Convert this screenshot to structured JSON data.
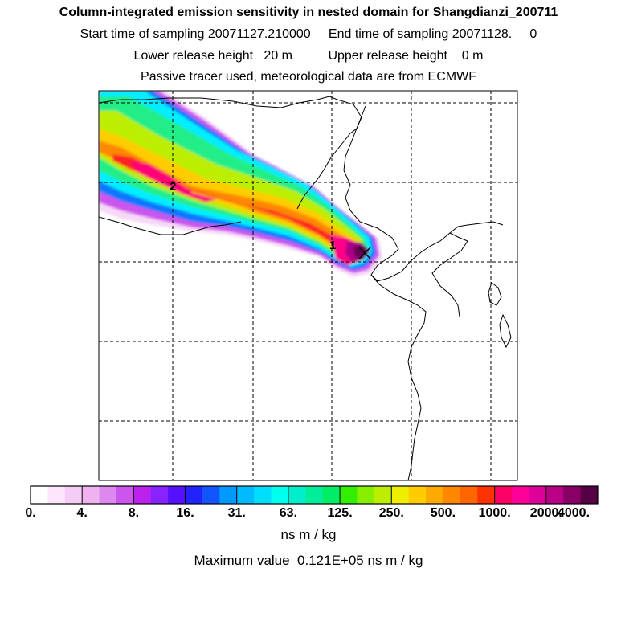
{
  "header": {
    "title": "Column-integrated emission sensitivity in nested domain for Shangdianzi_200711",
    "sampling_line": "Start time of sampling 20071127.210000     End time of sampling 20071128.     0",
    "release_line": "Lower release height   20 m          Upper release height    0 m",
    "tracer_line": "Passive tracer used, meteorological data are from ECMWF"
  },
  "map": {
    "markers": [
      {
        "label": "1"
      },
      {
        "label": "2"
      }
    ],
    "receptor_symbol": "x-marker-icon"
  },
  "colorbar": {
    "tick_labels": [
      "0.",
      "4.",
      "8.",
      "16.",
      "31.",
      "63.",
      "125.",
      "250.",
      "500.",
      "1000.",
      "2000.",
      "4000."
    ],
    "colors": [
      "#ffffff",
      "#fbe6fb",
      "#f5ccf5",
      "#eeb3ee",
      "#dd88ee",
      "#cc55ee",
      "#bb22ee",
      "#8822ff",
      "#5511ff",
      "#2222ff",
      "#1155ff",
      "#0099ff",
      "#00bbff",
      "#00ddff",
      "#00ffee",
      "#00eecc",
      "#00ee99",
      "#00ee66",
      "#33ee00",
      "#88ee00",
      "#bbee00",
      "#eeee00",
      "#ffcc00",
      "#ffaa00",
      "#ff8800",
      "#ff6600",
      "#ff3300",
      "#ff0066",
      "#ff0099",
      "#dd0099",
      "#bb0088",
      "#880066",
      "#550044"
    ],
    "unit": "ns m / kg"
  },
  "maximum": "Maximum value  0.121E+05 ns m / kg"
}
